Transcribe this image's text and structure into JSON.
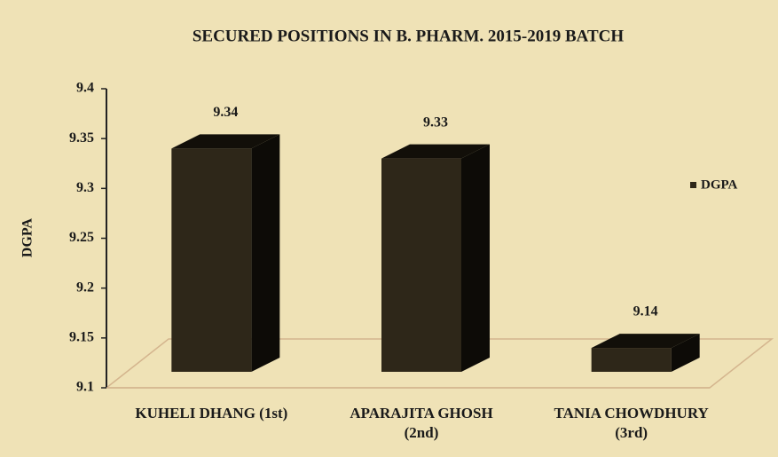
{
  "chart_data": {
    "type": "bar3d",
    "title": "SECURED POSITIONS IN B. PHARM. 2015-2019 BATCH",
    "y_label": "DGPA",
    "categories": [
      "KUHELI DHANG (1st)",
      "APARAJITA GHOSH (2nd)",
      "TANIA CHOWDHURY (3rd)"
    ],
    "series": [
      {
        "name": "DGPA",
        "color": "#2e2719",
        "values": [
          9.34,
          9.33,
          9.14
        ]
      }
    ],
    "ylim": [
      9.1,
      9.4
    ],
    "yticks": [
      9.1,
      9.15,
      9.2,
      9.25,
      9.3,
      9.35,
      9.4
    ],
    "legend": "right"
  }
}
